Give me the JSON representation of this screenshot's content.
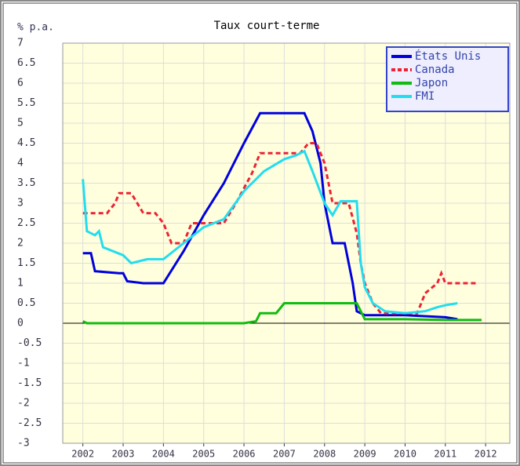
{
  "chart_data": {
    "type": "line",
    "title": "Taux court-terme",
    "y_label": "% p.a.",
    "xlim": [
      2001.5,
      2012.6
    ],
    "xticks": [
      2002,
      2003,
      2004,
      2005,
      2006,
      2007,
      2008,
      2009,
      2010,
      2011,
      2012
    ],
    "ylim": [
      -3,
      7
    ],
    "yticks": [
      -3,
      -2.5,
      -2,
      -1.5,
      -1,
      -0.5,
      0,
      0.5,
      1,
      1.5,
      2,
      2.5,
      3,
      3.5,
      4,
      4.5,
      5,
      5.5,
      6,
      6.5,
      7
    ],
    "grid": true,
    "legend": "top-right",
    "series": [
      {
        "name": "États Unis",
        "color": "#0000dd",
        "dashed": false,
        "x": [
          2002.0,
          2002.2,
          2002.3,
          2002.9,
          2003.0,
          2003.1,
          2003.5,
          2004.0,
          2004.5,
          2005.0,
          2005.5,
          2006.0,
          2006.4,
          2007.5,
          2007.7,
          2007.9,
          2008.0,
          2008.2,
          2008.5,
          2008.7,
          2008.8,
          2009.0,
          2010.0,
          2011.0,
          2011.3
        ],
        "values": [
          1.75,
          1.75,
          1.3,
          1.25,
          1.25,
          1.05,
          1.0,
          1.0,
          1.8,
          2.7,
          3.5,
          4.5,
          5.25,
          5.25,
          4.8,
          4.0,
          3.0,
          2.0,
          2.0,
          1.0,
          0.3,
          0.2,
          0.2,
          0.15,
          0.1
        ]
      },
      {
        "name": "Canada",
        "color": "#ee2233",
        "dashed": true,
        "x": [
          2002.0,
          2002.6,
          2002.8,
          2002.9,
          2003.2,
          2003.5,
          2003.8,
          2004.0,
          2004.2,
          2004.5,
          2004.7,
          2005.5,
          2005.8,
          2006.2,
          2006.4,
          2007.4,
          2007.6,
          2007.8,
          2008.0,
          2008.2,
          2008.6,
          2008.8,
          2008.9,
          2009.0,
          2009.2,
          2009.4,
          2010.3,
          2010.5,
          2010.8,
          2010.9,
          2011.0,
          2011.8
        ],
        "values": [
          2.75,
          2.75,
          3.0,
          3.25,
          3.25,
          2.75,
          2.75,
          2.5,
          2.0,
          2.0,
          2.5,
          2.5,
          3.0,
          3.75,
          4.25,
          4.25,
          4.5,
          4.5,
          4.0,
          3.0,
          3.0,
          2.25,
          1.5,
          1.0,
          0.5,
          0.25,
          0.25,
          0.75,
          1.0,
          1.25,
          1.0,
          1.0
        ]
      },
      {
        "name": "Japon",
        "color": "#11bb11",
        "dashed": false,
        "x": [
          2002.0,
          2002.1,
          2006.0,
          2006.3,
          2006.4,
          2006.8,
          2007.0,
          2008.8,
          2009.0,
          2010.0,
          2011.0,
          2011.9
        ],
        "values": [
          0.05,
          0.0,
          0.0,
          0.05,
          0.25,
          0.25,
          0.5,
          0.5,
          0.1,
          0.1,
          0.08,
          0.08
        ]
      },
      {
        "name": "FMI",
        "color": "#22ddee",
        "dashed": false,
        "x": [
          2002.0,
          2002.1,
          2002.3,
          2002.4,
          2002.5,
          2003.0,
          2003.2,
          2003.6,
          2004.0,
          2004.5,
          2005.0,
          2005.5,
          2006.0,
          2006.5,
          2007.0,
          2007.3,
          2007.5,
          2007.7,
          2008.0,
          2008.2,
          2008.4,
          2008.8,
          2008.9,
          2009.0,
          2009.2,
          2009.5,
          2010.0,
          2010.5,
          2010.8,
          2011.0,
          2011.3
        ],
        "values": [
          3.6,
          2.3,
          2.2,
          2.3,
          1.9,
          1.7,
          1.5,
          1.6,
          1.6,
          2.0,
          2.4,
          2.6,
          3.3,
          3.8,
          4.1,
          4.2,
          4.3,
          3.8,
          3.0,
          2.7,
          3.05,
          3.05,
          1.5,
          0.9,
          0.5,
          0.3,
          0.25,
          0.3,
          0.4,
          0.45,
          0.5
        ]
      }
    ]
  }
}
